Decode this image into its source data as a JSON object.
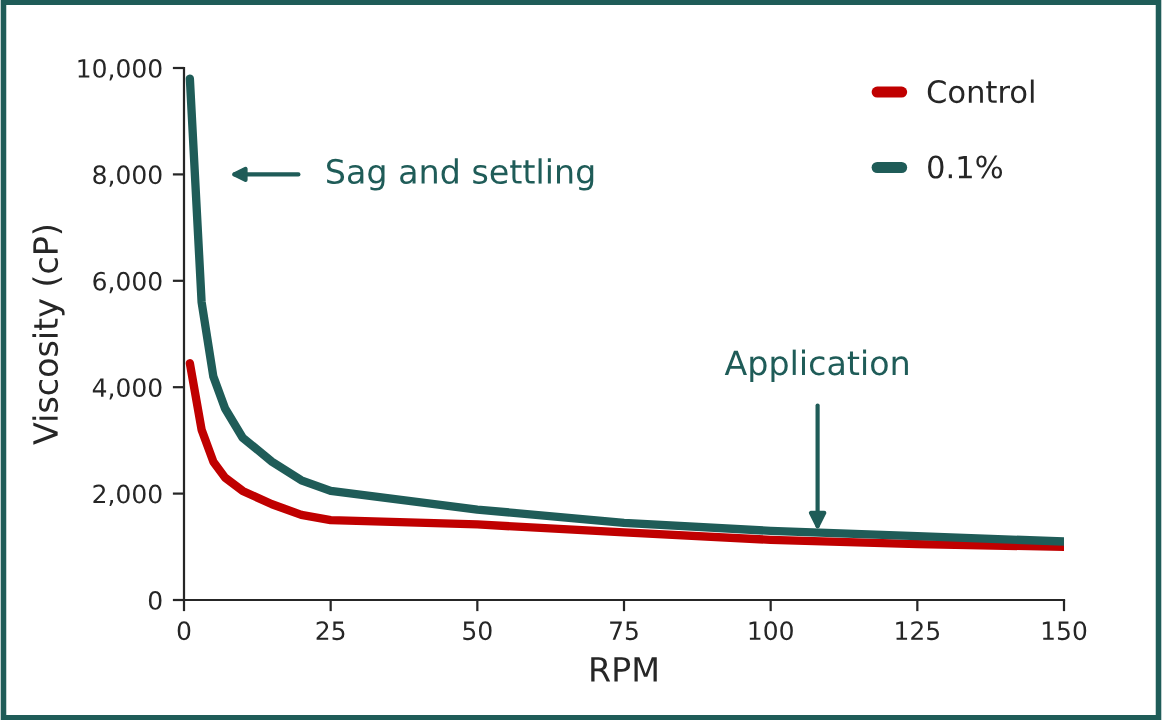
{
  "chart_data": {
    "type": "line",
    "xlabel": "RPM",
    "ylabel": "Viscosity (cP)",
    "x": [
      1,
      3,
      5,
      7,
      10,
      15,
      20,
      25,
      50,
      75,
      100,
      125,
      150
    ],
    "series": [
      {
        "name": "Control",
        "color": "#c00000",
        "values": [
          4450,
          3200,
          2600,
          2300,
          2050,
          1800,
          1600,
          1500,
          1420,
          1270,
          1130,
          1050,
          1000
        ]
      },
      {
        "name": "0.1%",
        "color": "#1f5c58",
        "values": [
          9800,
          5600,
          4200,
          3600,
          3050,
          2600,
          2250,
          2050,
          1700,
          1450,
          1300,
          1200,
          1100
        ]
      }
    ],
    "xlim": [
      0,
      150
    ],
    "xticks": [
      0,
      25,
      50,
      75,
      100,
      125,
      150
    ],
    "ylim": [
      0,
      10000
    ],
    "yticks": [
      {
        "value": 0,
        "label": "0"
      },
      {
        "value": 2000,
        "label": "2,000"
      },
      {
        "value": 4000,
        "label": "4,000"
      },
      {
        "value": 6000,
        "label": "6,000"
      },
      {
        "value": 8000,
        "label": "8,000"
      },
      {
        "value": 10000,
        "label": "10,000"
      }
    ],
    "annotations": [
      "Sag and settling",
      {
        "text": "Application",
        "x": 108,
        "y": 1300
      }
    ],
    "grid": false,
    "legend": "top right",
    "marker": "none",
    "line_style": "solid"
  }
}
